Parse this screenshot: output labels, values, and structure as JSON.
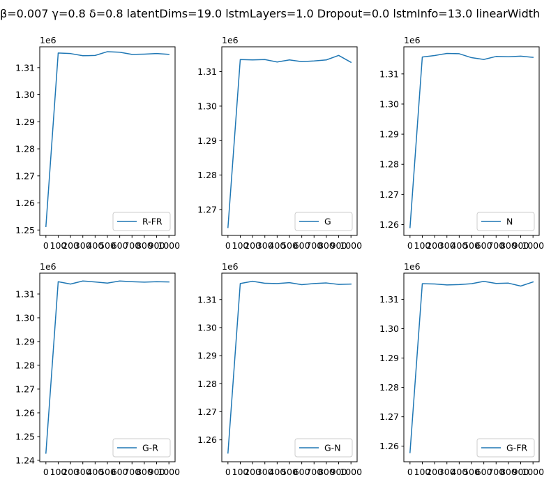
{
  "title": "β=0.007 γ=0.8 δ=0.8 latentDims=19.0 lstmLayers=1.0 Dropout=0.0 lstmInfo=13.0 linearWidth",
  "colors": {
    "line": "#1f77b4",
    "axes": "#000000",
    "legend_border": "#cccccc"
  },
  "chart_data": [
    {
      "type": "line",
      "legend": "R-FR",
      "legend_position": "lower-right",
      "offset_text": "1e6",
      "x": [
        0,
        100,
        200,
        300,
        400,
        500,
        600,
        700,
        800,
        900,
        1000
      ],
      "y": [
        1.2513,
        1.3154,
        1.3152,
        1.3144,
        1.3145,
        1.3159,
        1.3157,
        1.3149,
        1.315,
        1.3152,
        1.3149
      ],
      "ylim": [
        1.248,
        1.3177
      ],
      "yticks": [
        1.25,
        1.26,
        1.27,
        1.28,
        1.29,
        1.3,
        1.31
      ],
      "xticks": [
        0,
        100,
        200,
        300,
        400,
        500,
        600,
        700,
        800,
        900,
        1000
      ],
      "ytick_labels": [
        "1.25",
        "1.26",
        "1.27",
        "1.28",
        "1.29",
        "1.30",
        "1.31"
      ],
      "xtick_labels": [
        "0",
        "100",
        "200",
        "300",
        "400",
        "500",
        "600",
        "700",
        "800",
        "900",
        "1000"
      ]
    },
    {
      "type": "line",
      "legend": "G",
      "legend_position": "lower-right",
      "offset_text": "1e6",
      "x": [
        0,
        100,
        200,
        300,
        400,
        500,
        600,
        700,
        800,
        900,
        1000
      ],
      "y": [
        1.2648,
        1.3135,
        1.3134,
        1.3135,
        1.3128,
        1.3134,
        1.3129,
        1.3131,
        1.3134,
        1.3147,
        1.3127
      ],
      "ylim": [
        1.2625,
        1.3172
      ],
      "yticks": [
        1.27,
        1.28,
        1.29,
        1.3,
        1.31
      ],
      "xticks": [
        0,
        100,
        200,
        300,
        400,
        500,
        600,
        700,
        800,
        900,
        1000
      ],
      "ytick_labels": [
        "1.27",
        "1.28",
        "1.29",
        "1.30",
        "1.31"
      ],
      "xtick_labels": [
        "0",
        "100",
        "200",
        "300",
        "400",
        "500",
        "600",
        "700",
        "800",
        "900",
        "1000"
      ]
    },
    {
      "type": "line",
      "legend": "N",
      "legend_position": "lower-right",
      "offset_text": "1e6",
      "x": [
        0,
        100,
        200,
        300,
        400,
        500,
        600,
        700,
        800,
        900,
        1000
      ],
      "y": [
        1.259,
        1.3156,
        1.3161,
        1.3168,
        1.3167,
        1.3154,
        1.3148,
        1.3158,
        1.3157,
        1.3159,
        1.3155
      ],
      "ylim": [
        1.2564,
        1.319
      ],
      "yticks": [
        1.26,
        1.27,
        1.28,
        1.29,
        1.3,
        1.31
      ],
      "xticks": [
        0,
        100,
        200,
        300,
        400,
        500,
        600,
        700,
        800,
        900,
        1000
      ],
      "ytick_labels": [
        "1.26",
        "1.27",
        "1.28",
        "1.29",
        "1.30",
        "1.31"
      ],
      "xtick_labels": [
        "0",
        "100",
        "200",
        "300",
        "400",
        "500",
        "600",
        "700",
        "800",
        "900",
        "1000"
      ]
    },
    {
      "type": "line",
      "legend": "G-R",
      "legend_position": "lower-right",
      "offset_text": "1e6",
      "x": [
        0,
        100,
        200,
        300,
        400,
        500,
        600,
        700,
        800,
        900,
        1000
      ],
      "y": [
        1.243,
        1.3152,
        1.3142,
        1.3155,
        1.3151,
        1.3146,
        1.3155,
        1.3152,
        1.315,
        1.3152,
        1.3151
      ],
      "ylim": [
        1.2394,
        1.3188
      ],
      "yticks": [
        1.24,
        1.25,
        1.26,
        1.27,
        1.28,
        1.29,
        1.3,
        1.31
      ],
      "xticks": [
        0,
        100,
        200,
        300,
        400,
        500,
        600,
        700,
        800,
        900,
        1000
      ],
      "ytick_labels": [
        "1.24",
        "1.25",
        "1.26",
        "1.27",
        "1.28",
        "1.29",
        "1.30",
        "1.31"
      ],
      "xtick_labels": [
        "0",
        "100",
        "200",
        "300",
        "400",
        "500",
        "600",
        "700",
        "800",
        "900",
        "1000"
      ]
    },
    {
      "type": "line",
      "legend": "G-N",
      "legend_position": "lower-right",
      "offset_text": "1e6",
      "x": [
        0,
        100,
        200,
        300,
        400,
        500,
        600,
        700,
        800,
        900,
        1000
      ],
      "y": [
        1.2553,
        1.3157,
        1.3165,
        1.3158,
        1.3157,
        1.316,
        1.3153,
        1.3157,
        1.3159,
        1.3154,
        1.3155
      ],
      "ylim": [
        1.2522,
        1.3194
      ],
      "yticks": [
        1.26,
        1.27,
        1.28,
        1.29,
        1.3,
        1.31
      ],
      "xticks": [
        0,
        100,
        200,
        300,
        400,
        500,
        600,
        700,
        800,
        900,
        1000
      ],
      "ytick_labels": [
        "1.26",
        "1.27",
        "1.28",
        "1.29",
        "1.30",
        "1.31"
      ],
      "xtick_labels": [
        "0",
        "100",
        "200",
        "300",
        "400",
        "500",
        "600",
        "700",
        "800",
        "900",
        "1000"
      ]
    },
    {
      "type": "line",
      "legend": "G-FR",
      "legend_position": "lower-right",
      "offset_text": "1e6",
      "x": [
        0,
        100,
        200,
        300,
        400,
        500,
        600,
        700,
        800,
        900,
        1000
      ],
      "y": [
        1.2578,
        1.3153,
        1.3152,
        1.3149,
        1.315,
        1.3153,
        1.3161,
        1.3154,
        1.3155,
        1.3145,
        1.3159
      ],
      "ylim": [
        1.2547,
        1.3189
      ],
      "yticks": [
        1.26,
        1.27,
        1.28,
        1.29,
        1.3,
        1.31
      ],
      "xticks": [
        0,
        100,
        200,
        300,
        400,
        500,
        600,
        700,
        800,
        900,
        1000
      ],
      "ytick_labels": [
        "1.26",
        "1.27",
        "1.28",
        "1.29",
        "1.30",
        "1.31"
      ],
      "xtick_labels": [
        "0",
        "100",
        "200",
        "300",
        "400",
        "500",
        "600",
        "700",
        "800",
        "900",
        "1000"
      ]
    }
  ]
}
